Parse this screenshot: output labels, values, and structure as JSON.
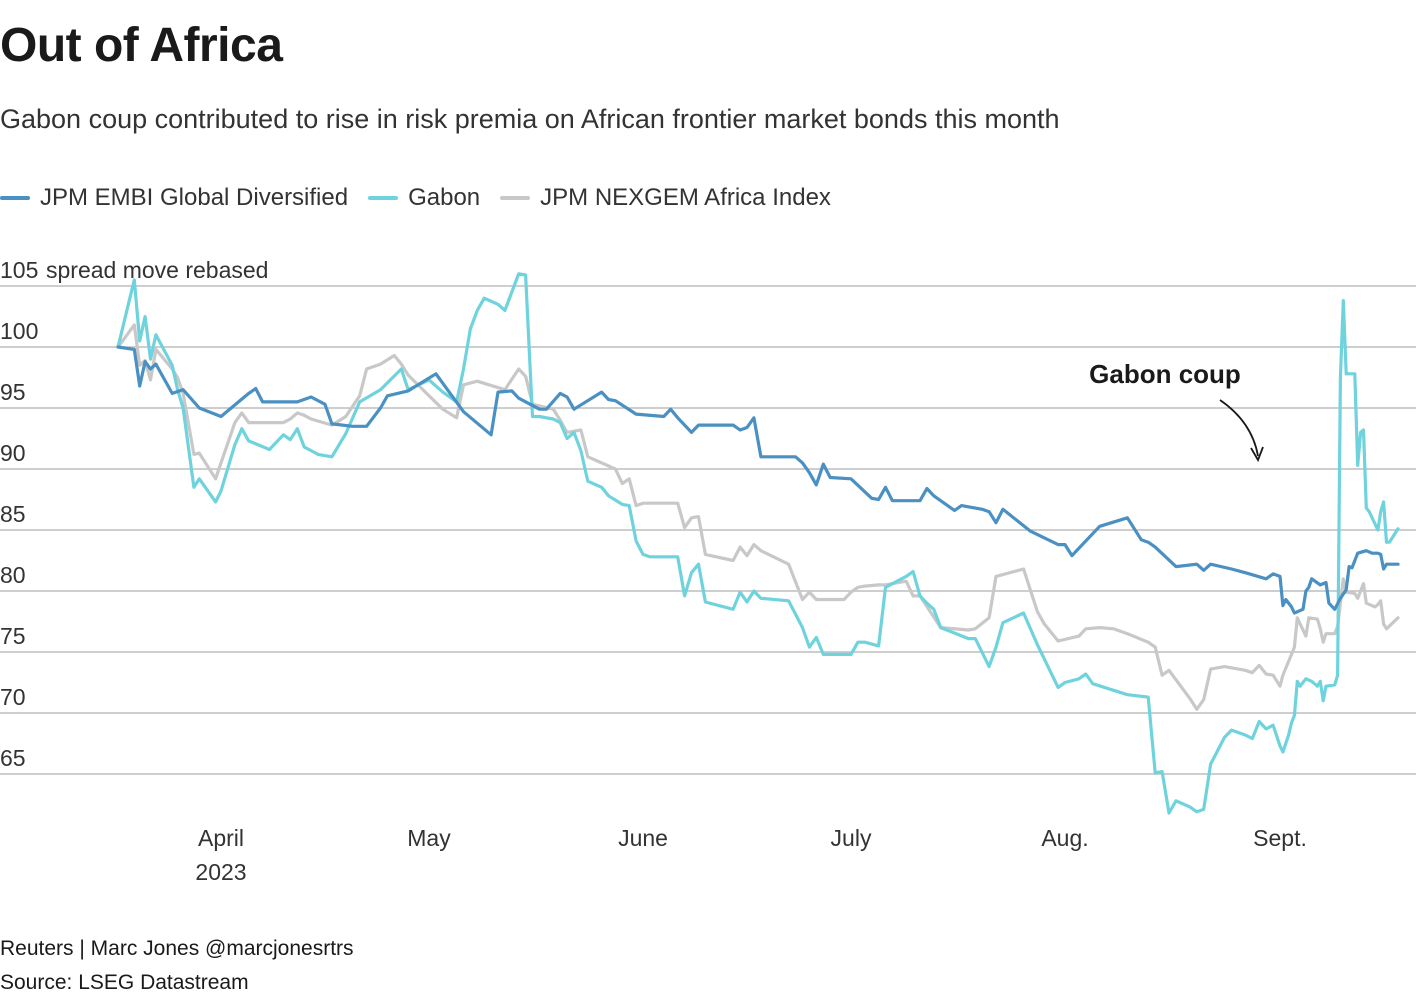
{
  "chart_data": {
    "type": "line",
    "title": "Out of Africa",
    "subtitle": "Gabon coup contributed to rise in risk premia on African frontier market bonds this month",
    "ylabel": "spread move rebased",
    "ylim": [
      60,
      105
    ],
    "yticks": [
      105,
      100,
      95,
      90,
      85,
      80,
      75,
      70,
      65
    ],
    "grid": true,
    "legend": "top-left",
    "x_start": "2023-03-13",
    "x_end": "2023-09-19",
    "xticks": [
      {
        "date": "2023-04-01",
        "label": "April",
        "sublabel": "2023"
      },
      {
        "date": "2023-05-01",
        "label": "May",
        "sublabel": ""
      },
      {
        "date": "2023-06-01",
        "label": "June",
        "sublabel": ""
      },
      {
        "date": "2023-07-01",
        "label": "July",
        "sublabel": ""
      },
      {
        "date": "2023-08-01",
        "label": "Aug.",
        "sublabel": ""
      },
      {
        "date": "2023-09-01",
        "label": "Sept.",
        "sublabel": ""
      }
    ],
    "annotation": {
      "label": "Gabon coup",
      "date": "2023-08-30",
      "value": 90.5
    },
    "series": [
      {
        "name": "JPM EMBI Global Diversified",
        "color": "#4a90c2",
        "points": [
          [
            "2023-03-13",
            100
          ],
          [
            "2023-03-16",
            99.8
          ],
          [
            "2023-03-17",
            96.8
          ],
          [
            "2023-03-18",
            98.8
          ],
          [
            "2023-03-19",
            98.2
          ],
          [
            "2023-03-20",
            98.6
          ],
          [
            "2023-03-23",
            96.2
          ],
          [
            "2023-03-24",
            96.5
          ],
          [
            "2023-03-27",
            95
          ],
          [
            "2023-03-31",
            94.3
          ],
          [
            "2023-04-03",
            96.2
          ],
          [
            "2023-04-04",
            96.6
          ],
          [
            "2023-04-05",
            95.5
          ],
          [
            "2023-04-10",
            95.5
          ],
          [
            "2023-04-12",
            95.9
          ],
          [
            "2023-04-13",
            95.3
          ],
          [
            "2023-04-14",
            93.7
          ],
          [
            "2023-04-17",
            93.5
          ],
          [
            "2023-04-19",
            93.5
          ],
          [
            "2023-04-21",
            95
          ],
          [
            "2023-04-22",
            96
          ],
          [
            "2023-04-24",
            96.4
          ],
          [
            "2023-04-28",
            97.8
          ],
          [
            "2023-05-02",
            94.7
          ],
          [
            "2023-05-05",
            92.8
          ],
          [
            "2023-05-06",
            96.3
          ],
          [
            "2023-05-08",
            96.4
          ],
          [
            "2023-05-09",
            95.8
          ],
          [
            "2023-05-12",
            94.9
          ],
          [
            "2023-05-13",
            94.9
          ],
          [
            "2023-05-14",
            96.2
          ],
          [
            "2023-05-15",
            95.9
          ],
          [
            "2023-05-16",
            94.9
          ],
          [
            "2023-05-20",
            96.3
          ],
          [
            "2023-05-21",
            95.7
          ],
          [
            "2023-05-22",
            95.6
          ],
          [
            "2023-05-24",
            94.5
          ],
          [
            "2023-05-28",
            94.3
          ],
          [
            "2023-05-29",
            94.9
          ],
          [
            "2023-05-30",
            94.2
          ],
          [
            "2023-06-01",
            93
          ],
          [
            "2023-06-02",
            93.6
          ],
          [
            "2023-06-06",
            93.6
          ],
          [
            "2023-06-07",
            93.2
          ],
          [
            "2023-06-08",
            93.4
          ],
          [
            "2023-06-09",
            94.2
          ],
          [
            "2023-06-10",
            91
          ],
          [
            "2023-06-14",
            91
          ],
          [
            "2023-06-15",
            90.5
          ],
          [
            "2023-06-16",
            89.7
          ],
          [
            "2023-06-17",
            88.7
          ],
          [
            "2023-06-18",
            90.4
          ],
          [
            "2023-06-19",
            89.3
          ],
          [
            "2023-06-22",
            89.2
          ],
          [
            "2023-06-24",
            87.6
          ],
          [
            "2023-06-25",
            87.5
          ],
          [
            "2023-06-26",
            88.5
          ],
          [
            "2023-06-27",
            87.4
          ],
          [
            "2023-06-28",
            87.4
          ],
          [
            "2023-06-30",
            87.4
          ],
          [
            "2023-07-01",
            87.4
          ],
          [
            "2023-07-02",
            88.4
          ],
          [
            "2023-07-03",
            87.8
          ],
          [
            "2023-07-05",
            86.6
          ],
          [
            "2023-07-06",
            87
          ],
          [
            "2023-07-09",
            86.7
          ],
          [
            "2023-07-10",
            86.5
          ],
          [
            "2023-07-11",
            85.6
          ],
          [
            "2023-07-12",
            86.7
          ],
          [
            "2023-07-15",
            84.9
          ],
          [
            "2023-07-19",
            83.8
          ],
          [
            "2023-07-20",
            83.8
          ],
          [
            "2023-07-21",
            82.9
          ],
          [
            "2023-07-24",
            85.3
          ],
          [
            "2023-07-28",
            86
          ],
          [
            "2023-07-30",
            84.2
          ],
          [
            "2023-07-31",
            84
          ],
          [
            "2023-08-01",
            83.6
          ],
          [
            "2023-08-03",
            82
          ],
          [
            "2023-08-06",
            82.2
          ],
          [
            "2023-08-07",
            81.7
          ],
          [
            "2023-08-08",
            82.2
          ],
          [
            "2023-08-11",
            81.8
          ],
          [
            "2023-08-13",
            81.5
          ],
          [
            "2023-08-15",
            81
          ],
          [
            "2023-08-16",
            81.4
          ],
          [
            "2023-08-17",
            81.2
          ],
          [
            "2023-08-18",
            78.8
          ],
          [
            "2023-08-19",
            79.3
          ],
          [
            "2023-08-21",
            78.7
          ],
          [
            "2023-08-22",
            78.2
          ],
          [
            "2023-08-24",
            78.5
          ],
          [
            "2023-08-25",
            80
          ],
          [
            "2023-08-26",
            80.3
          ],
          [
            "2023-08-27",
            81
          ],
          [
            "2023-08-30",
            80.5
          ],
          [
            "2023-09-01",
            80.7
          ],
          [
            "2023-09-02",
            79
          ],
          [
            "2023-09-03",
            78.5
          ],
          [
            "2023-09-05",
            79.4
          ],
          [
            "2023-09-07",
            80.1
          ],
          [
            "2023-09-08",
            82
          ],
          [
            "2023-09-09",
            81.9
          ],
          [
            "2023-09-11",
            83.1
          ],
          [
            "2023-09-13",
            83.3
          ],
          [
            "2023-09-15",
            83.1
          ],
          [
            "2023-09-17",
            83.1
          ],
          [
            "2023-09-18",
            83
          ],
          [
            "2023-09-19",
            81.8
          ],
          [
            "2023-09-20",
            82.2
          ],
          [
            "2023-09-23",
            82.2
          ],
          [
            "2023-08-30",
            82.1
          ]
        ]
      }
    ]
  },
  "footer": {
    "credit": "Reuters | Marc Jones @marcjonesrtrs",
    "source": "Source: LSEG Datastream"
  }
}
